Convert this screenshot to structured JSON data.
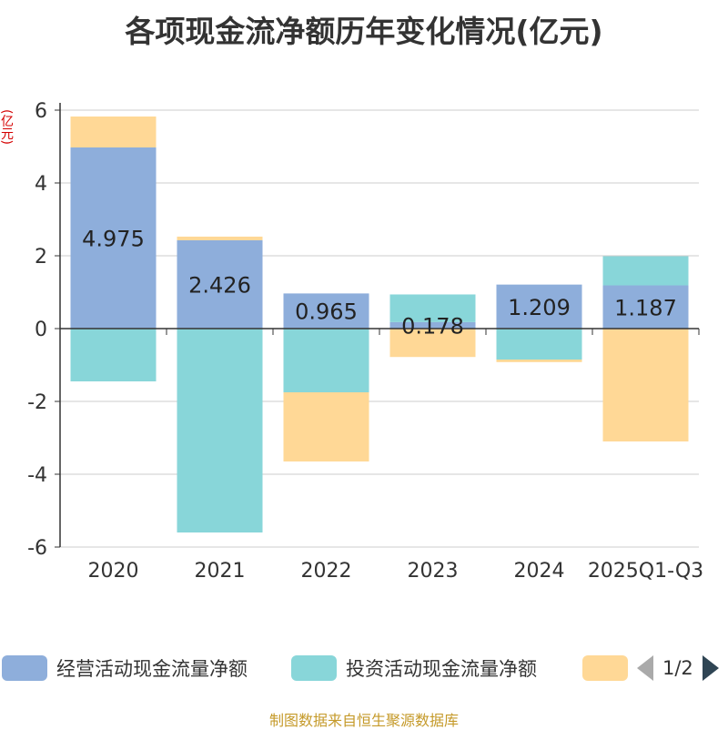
{
  "title": "各项现金流净额历年变化情况(亿元)",
  "unit_label": "(亿元)",
  "source": "制图数据来自恒生聚源数据库",
  "pager": {
    "text": "1/2"
  },
  "colors": {
    "operating": "#8eaedb",
    "investing": "#88d6d9",
    "financing": "#ffd896",
    "axis": "#333333",
    "grid": "#cccccc"
  },
  "chart_data": {
    "type": "bar",
    "stacked": true,
    "title": "各项现金流净额历年变化情况(亿元)",
    "ylabel": "(亿元)",
    "ylim": [
      -6,
      6
    ],
    "yticks": [
      -6,
      -4,
      -2,
      0,
      2,
      4,
      6
    ],
    "categories": [
      "2020",
      "2021",
      "2022",
      "2023",
      "2024",
      "2025Q1-Q3"
    ],
    "series": [
      {
        "name": "经营活动现金流量净额",
        "color": "#8eaedb",
        "values": [
          4.975,
          2.426,
          0.965,
          0.178,
          1.209,
          1.187
        ]
      },
      {
        "name": "投资活动现金流量净额",
        "color": "#88d6d9",
        "values": [
          -1.45,
          -5.6,
          -1.75,
          0.76,
          -0.85,
          0.8
        ]
      },
      {
        "name": "",
        "color": "#ffd896",
        "values": [
          0.85,
          0.1,
          -1.9,
          -0.78,
          -0.07,
          -3.1
        ]
      }
    ],
    "data_labels": [
      "4.975",
      "2.426",
      "0.965",
      "0.178",
      "1.209",
      "1.187"
    ],
    "legend": [
      "经营活动现金流量净额",
      "投资活动现金流量净额",
      ""
    ],
    "legend_position": "bottom"
  }
}
